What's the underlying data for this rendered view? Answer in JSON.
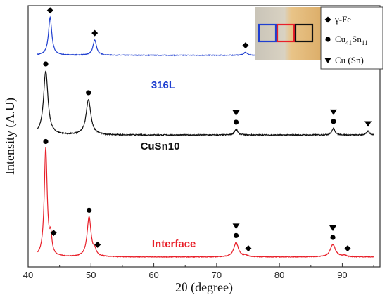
{
  "chart_data": {
    "type": "line",
    "xlabel": "2θ (degree)",
    "ylabel": "Intensity (A.U)",
    "xlim": [
      40,
      96
    ],
    "ylim": [
      0,
      1
    ],
    "xticks": [
      40,
      50,
      60,
      70,
      80,
      90
    ],
    "grid": false,
    "legend": {
      "placement": "top-right",
      "entries": [
        {
          "marker": "diamond",
          "label": "γ-Fe"
        },
        {
          "marker": "circle",
          "label": "Cu",
          "sub1": "41",
          "mid": "Sn",
          "sub2": "11"
        },
        {
          "marker": "triangle-down",
          "label": "Cu (Sn)"
        }
      ]
    },
    "inset_colors": [
      "#1f3fd0",
      "#e8202a",
      "#111111"
    ],
    "series": [
      {
        "name": "316L",
        "color": "#1f3fd0",
        "baseline": 0.81,
        "label_x": 61.5,
        "peaks": [
          {
            "x": 43.5,
            "h": 0.145,
            "w": 0.32,
            "marker": "diamond"
          },
          {
            "x": 50.6,
            "h": 0.058,
            "w": 0.34,
            "marker": "diamond"
          },
          {
            "x": 74.6,
            "h": 0.011,
            "w": 0.35,
            "marker": "diamond"
          },
          {
            "x": 90.6,
            "h": 0.016,
            "w": 0.35,
            "marker": "diamond"
          }
        ]
      },
      {
        "name": "CuSn10",
        "color": "#111111",
        "baseline": 0.505,
        "label_x": 61.0,
        "peaks": [
          {
            "x": 42.8,
            "h": 0.245,
            "w": 0.42,
            "marker": "circle"
          },
          {
            "x": 49.6,
            "h": 0.135,
            "w": 0.45,
            "marker": "circle"
          },
          {
            "x": 73.1,
            "h": 0.022,
            "w": 0.3,
            "marker": "circle+triangle-down"
          },
          {
            "x": 88.6,
            "h": 0.025,
            "w": 0.3,
            "marker": "circle+triangle-down"
          },
          {
            "x": 94.1,
            "h": 0.015,
            "w": 0.28,
            "marker": "triangle-down"
          }
        ]
      },
      {
        "name": "Interface",
        "color": "#e8202a",
        "baseline": 0.038,
        "label_x": 63.2,
        "peaks": [
          {
            "x": 42.8,
            "h": 0.415,
            "w": 0.28,
            "marker": "circle"
          },
          {
            "x": 43.6,
            "h": 0.065,
            "w": 0.22,
            "marker": "diamond"
          },
          {
            "x": 49.7,
            "h": 0.152,
            "w": 0.38,
            "marker": "circle"
          },
          {
            "x": 50.6,
            "h": 0.02,
            "w": 0.25,
            "marker": "diamond"
          },
          {
            "x": 73.1,
            "h": 0.055,
            "w": 0.45,
            "marker": "circle+triangle-down"
          },
          {
            "x": 74.6,
            "h": 0.006,
            "w": 0.3,
            "marker": "diamond"
          },
          {
            "x": 88.5,
            "h": 0.048,
            "w": 0.5,
            "marker": "circle+triangle-down"
          },
          {
            "x": 90.4,
            "h": 0.006,
            "w": 0.3,
            "marker": "diamond"
          }
        ]
      }
    ]
  }
}
